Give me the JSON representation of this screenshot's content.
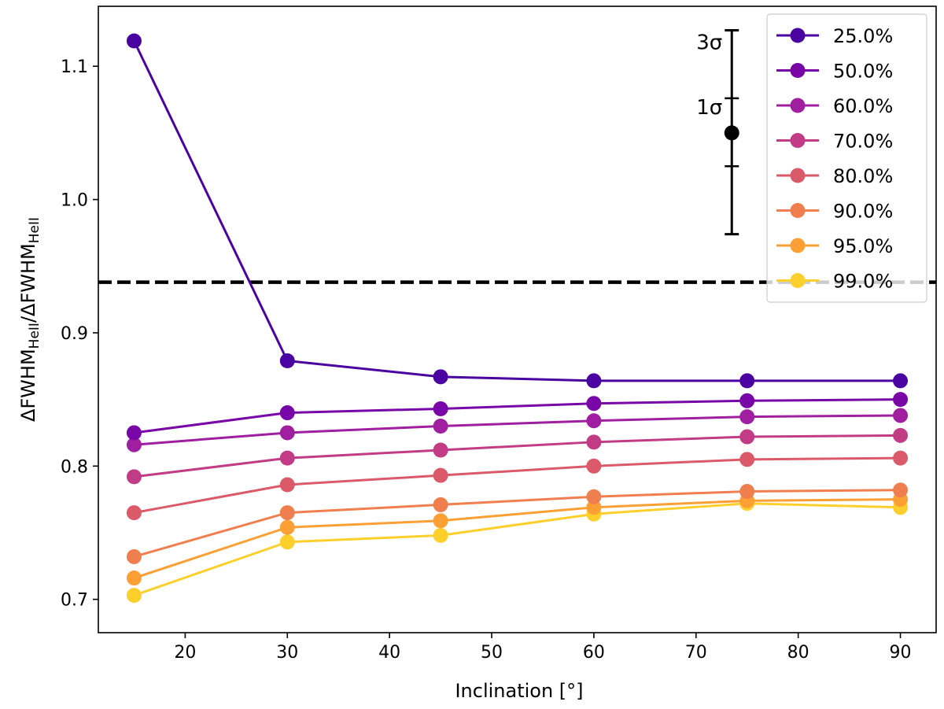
{
  "chart_data": {
    "type": "line",
    "title": "",
    "xlabel": "Inclination [°]",
    "ylabel_main": "ΔFWHM",
    "ylabel_sub": "HeII",
    "ylabel_sep": "/",
    "xlim": [
      11.5,
      93.5
    ],
    "ylim": [
      0.675,
      1.145
    ],
    "xticks": [
      20,
      30,
      40,
      50,
      60,
      70,
      80,
      90
    ],
    "yticks": [
      0.7,
      0.8,
      0.9,
      1.0,
      1.1
    ],
    "ytick_labels": [
      "0.7",
      "0.8",
      "0.9",
      "1.0",
      "1.1"
    ],
    "x": [
      15,
      30,
      45,
      60,
      75,
      90
    ],
    "series": [
      {
        "name": "99.0%",
        "color": "#fccf2c",
        "values": [
          0.703,
          0.743,
          0.748,
          0.764,
          0.772,
          0.769
        ]
      },
      {
        "name": "95.0%",
        "color": "#fca036",
        "values": [
          0.716,
          0.754,
          0.759,
          0.769,
          0.774,
          0.775
        ]
      },
      {
        "name": "90.0%",
        "color": "#f07f4f",
        "values": [
          0.732,
          0.765,
          0.771,
          0.777,
          0.781,
          0.782
        ]
      },
      {
        "name": "80.0%",
        "color": "#da5a6a",
        "values": [
          0.765,
          0.786,
          0.793,
          0.8,
          0.805,
          0.806
        ]
      },
      {
        "name": "70.0%",
        "color": "#c13c85",
        "values": [
          0.792,
          0.806,
          0.812,
          0.818,
          0.822,
          0.823
        ]
      },
      {
        "name": "60.0%",
        "color": "#a01fa0",
        "values": [
          0.816,
          0.825,
          0.83,
          0.834,
          0.837,
          0.838
        ]
      },
      {
        "name": "50.0%",
        "color": "#7906a7",
        "values": [
          0.825,
          0.84,
          0.843,
          0.847,
          0.849,
          0.85
        ]
      },
      {
        "name": "25.0%",
        "color": "#4a03a0",
        "values": [
          1.119,
          0.879,
          0.867,
          0.864,
          0.864,
          0.864
        ]
      }
    ],
    "reference_line": {
      "y": 0.938,
      "style": "dashed",
      "color": "#000000"
    },
    "error_bar": {
      "x": 73.5,
      "y": 1.05,
      "sigma1": [
        1.025,
        1.076
      ],
      "sigma3": [
        0.974,
        1.127
      ],
      "labels": [
        "3σ",
        "1σ"
      ]
    },
    "legend_position": "top-right"
  }
}
